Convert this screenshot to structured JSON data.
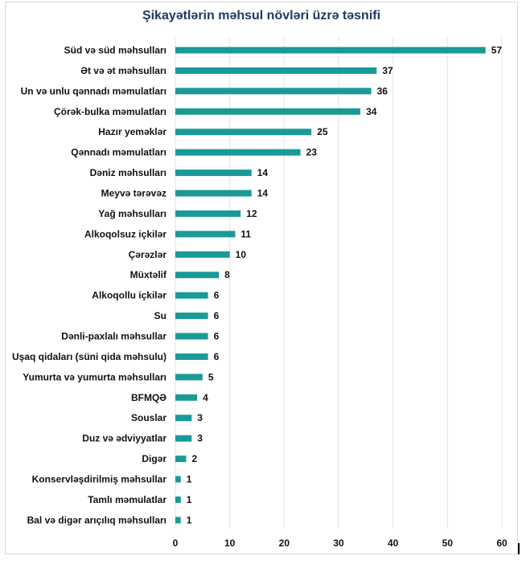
{
  "chart_data": {
    "type": "bar",
    "orientation": "horizontal",
    "title": "Şikayətlərin məhsul növləri üzrə təsnifi",
    "categories": [
      "Süd və süd məhsulları",
      "Ət və ət məhsulları",
      "Un və unlu qənnadı məmulatları",
      "Çörək-bulka məmulatları",
      "Hazır yeməklər",
      "Qənnadı məmulatları",
      "Dəniz məhsulları",
      "Meyvə tərəvəz",
      "Yağ məhsulları",
      "Alkoqolsuz içkilər",
      "Çərəzlər",
      "Müxtəlif",
      "Alkoqollu içkilər",
      "Su",
      "Dənli-paxlalı məhsullar",
      "Uşaq qidaları (süni qida məhsulu)",
      "Yumurta və yumurta məhsulları",
      "BFMQƏ",
      "Souslar",
      "Duz və ədviyyatlar",
      "Digər",
      "Konservləşdirilmiş məhsullar",
      "Tamlı məmulatlar",
      "Bal və digər arıçılıq məhsulları"
    ],
    "values": [
      57,
      37,
      36,
      34,
      25,
      23,
      14,
      14,
      12,
      11,
      10,
      8,
      6,
      6,
      6,
      6,
      5,
      4,
      3,
      3,
      2,
      1,
      1,
      1
    ],
    "xlim": [
      0,
      60
    ],
    "xticks": [
      0,
      10,
      20,
      30,
      40,
      50,
      60
    ],
    "bar_color": "#1a9a96",
    "data_labels": true,
    "grid": true,
    "legend": "none"
  }
}
